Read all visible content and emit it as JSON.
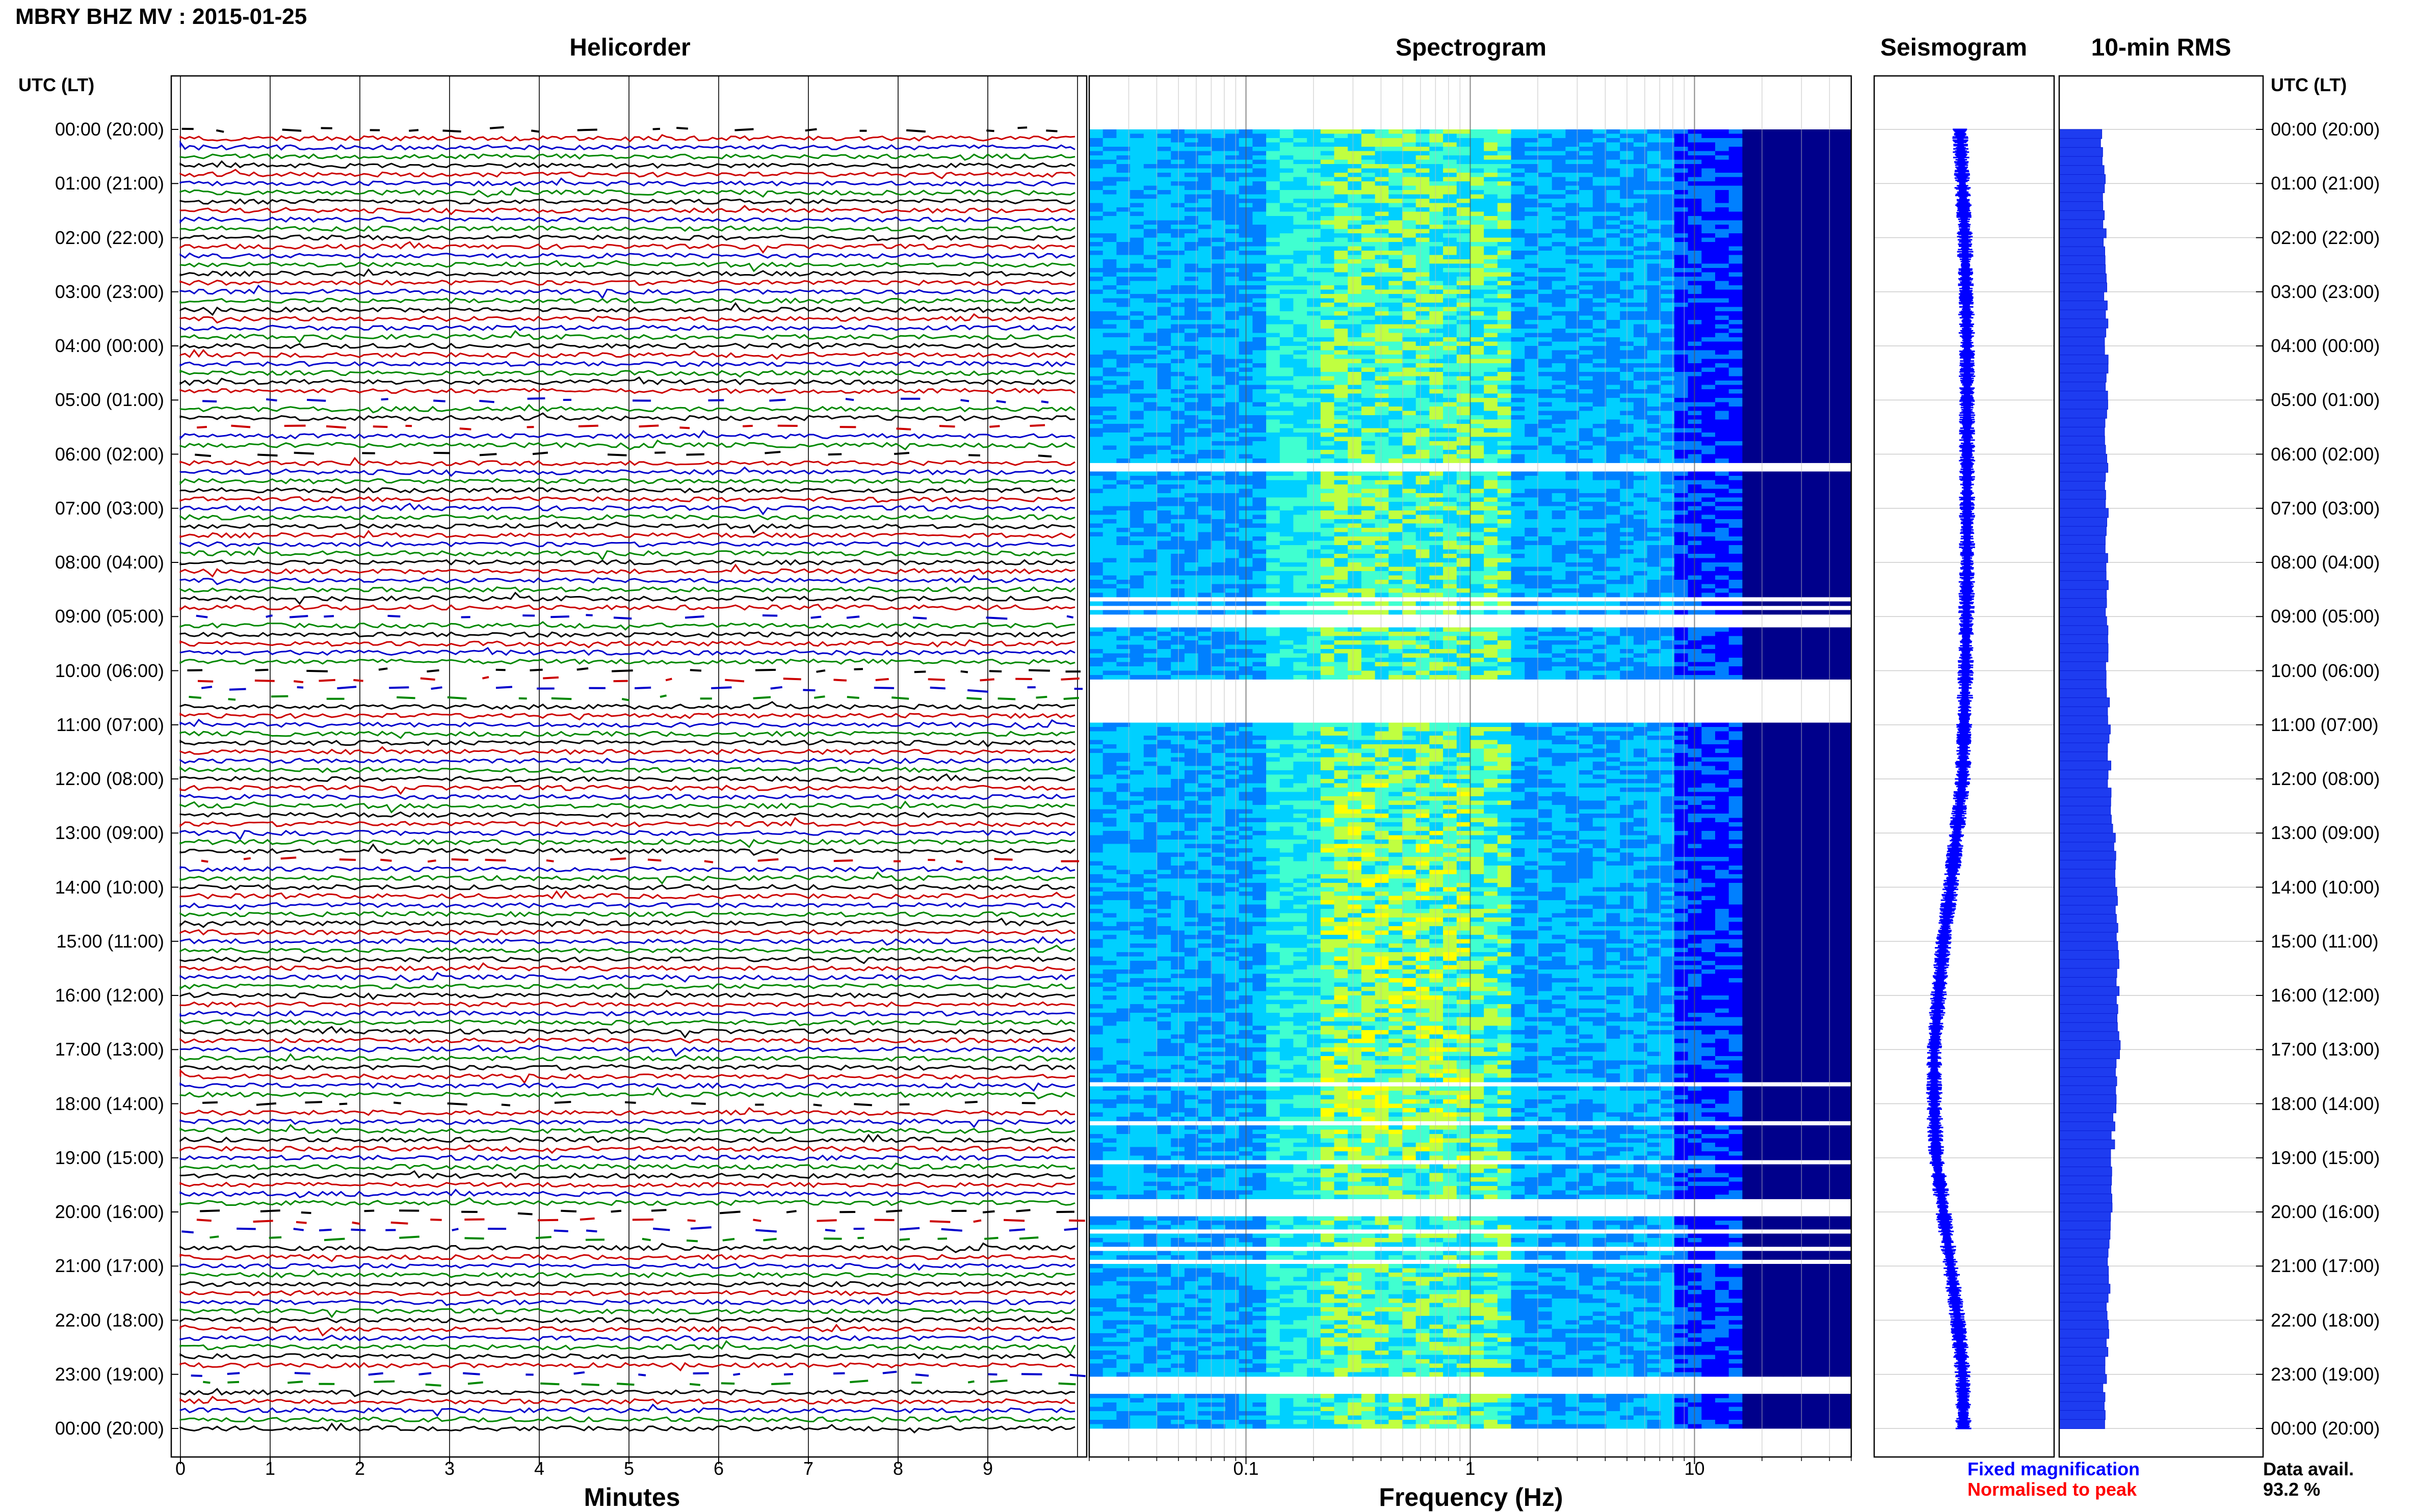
{
  "page_title": "MBRY BHZ MV : 2015-01-25",
  "panels": {
    "helicorder": "Helicorder",
    "spectrogram": "Spectrogram",
    "seismogram": "Seismogram",
    "rms": "10-min RMS"
  },
  "axis_header_left": "UTC (LT)",
  "axis_header_right": "UTC (LT)",
  "time_labels": [
    "00:00 (20:00)",
    "01:00 (21:00)",
    "02:00 (22:00)",
    "03:00 (23:00)",
    "04:00 (00:00)",
    "05:00 (01:00)",
    "06:00 (02:00)",
    "07:00 (03:00)",
    "08:00 (04:00)",
    "09:00 (05:00)",
    "10:00 (06:00)",
    "11:00 (07:00)",
    "12:00 (08:00)",
    "13:00 (09:00)",
    "14:00 (10:00)",
    "15:00 (11:00)",
    "16:00 (12:00)",
    "17:00 (13:00)",
    "18:00 (14:00)",
    "19:00 (15:00)",
    "20:00 (16:00)",
    "21:00 (17:00)",
    "22:00 (18:00)",
    "23:00 (19:00)",
    "00:00 (20:00)"
  ],
  "xlabel_minutes": "Minutes",
  "xlabel_frequency": "Frequency (Hz)",
  "legend": {
    "fixed": "Fixed magnification",
    "normalised": "Normalised to peak",
    "fixed_color": "#0000ff",
    "normalised_color": "#ff0000"
  },
  "data_availability": {
    "label": "Data avail.",
    "value": "93.2 %"
  },
  "chart_data": [
    {
      "type": "line",
      "panel": "helicorder",
      "xlabel": "Minutes",
      "xlim": [
        0,
        10
      ],
      "x_ticks": [
        "0",
        "1",
        "2",
        "3",
        "4",
        "5",
        "6",
        "7",
        "8",
        "9"
      ],
      "y_ticks": [
        "00:00 (20:00)",
        "01:00 (21:00)",
        "02:00 (22:00)",
        "03:00 (23:00)",
        "04:00 (00:00)",
        "05:00 (01:00)",
        "06:00 (02:00)",
        "07:00 (03:00)",
        "08:00 (04:00)",
        "09:00 (05:00)",
        "10:00 (06:00)",
        "11:00 (07:00)",
        "12:00 (08:00)",
        "13:00 (09:00)",
        "14:00 (10:00)",
        "15:00 (11:00)",
        "16:00 (12:00)",
        "17:00 (13:00)",
        "18:00 (14:00)",
        "19:00 (15:00)",
        "20:00 (16:00)",
        "21:00 (17:00)",
        "22:00 (18:00)",
        "23:00 (19:00)",
        "00:00 (20:00)"
      ],
      "trace_colors": [
        "#000000",
        "#cc0000",
        "#0000cc",
        "#008800"
      ],
      "traces_per_hour": 6,
      "sparse_trace_hours": [
        0.0,
        5.0,
        5.5,
        6.0,
        9.0,
        10.0,
        10.17,
        10.33,
        10.5,
        13.5,
        18.0,
        20.0,
        20.17,
        20.33,
        20.5,
        23.0,
        23.17
      ]
    },
    {
      "type": "heatmap",
      "panel": "spectrogram",
      "xlabel": "Frequency (Hz)",
      "x_scale": "log",
      "xlim": [
        0.02,
        50
      ],
      "x_ticks": [
        "0.1",
        "1",
        "10"
      ],
      "colormap": [
        "#00008b",
        "#0000ff",
        "#0080ff",
        "#00d0ff",
        "#40ffd0",
        "#c0ff40",
        "#ffff00"
      ],
      "gaps_hours": [
        [
          0.1,
          0.14
        ],
        [
          5.05,
          5.1
        ],
        [
          6.1,
          6.25
        ],
        [
          8.6,
          8.65
        ],
        [
          8.8,
          8.85
        ],
        [
          8.95,
          9.15
        ],
        [
          10.1,
          10.95
        ],
        [
          17.6,
          17.65
        ],
        [
          17.95,
          18.0
        ],
        [
          18.3,
          18.35
        ],
        [
          19.0,
          19.05
        ],
        [
          19.75,
          20.05
        ],
        [
          20.25,
          20.35
        ],
        [
          20.6,
          20.65
        ],
        [
          20.85,
          20.9
        ],
        [
          23.0,
          23.35
        ]
      ]
    },
    {
      "type": "line",
      "panel": "seismogram",
      "hours": [
        0,
        2,
        4,
        6,
        8,
        10,
        12,
        14,
        15,
        16,
        17,
        18,
        19,
        20,
        21,
        22,
        23,
        24
      ],
      "offset": [
        -0.02,
        0.05,
        0.08,
        0.08,
        0.08,
        0.06,
        0.02,
        -0.15,
        -0.25,
        -0.32,
        -0.38,
        -0.38,
        -0.35,
        -0.25,
        -0.15,
        -0.05,
        0.02,
        0.03
      ]
    },
    {
      "type": "bar",
      "panel": "rms",
      "interval": "10-min",
      "hours": [
        0,
        2,
        4,
        6,
        8,
        10,
        12,
        13,
        14,
        15,
        16,
        17,
        18,
        19,
        20,
        21,
        22,
        23,
        24
      ],
      "relative_rms": [
        0.3,
        0.32,
        0.33,
        0.33,
        0.33,
        0.34,
        0.35,
        0.38,
        0.4,
        0.41,
        0.41,
        0.42,
        0.39,
        0.37,
        0.36,
        0.35,
        0.34,
        0.32,
        0.31
      ]
    }
  ]
}
